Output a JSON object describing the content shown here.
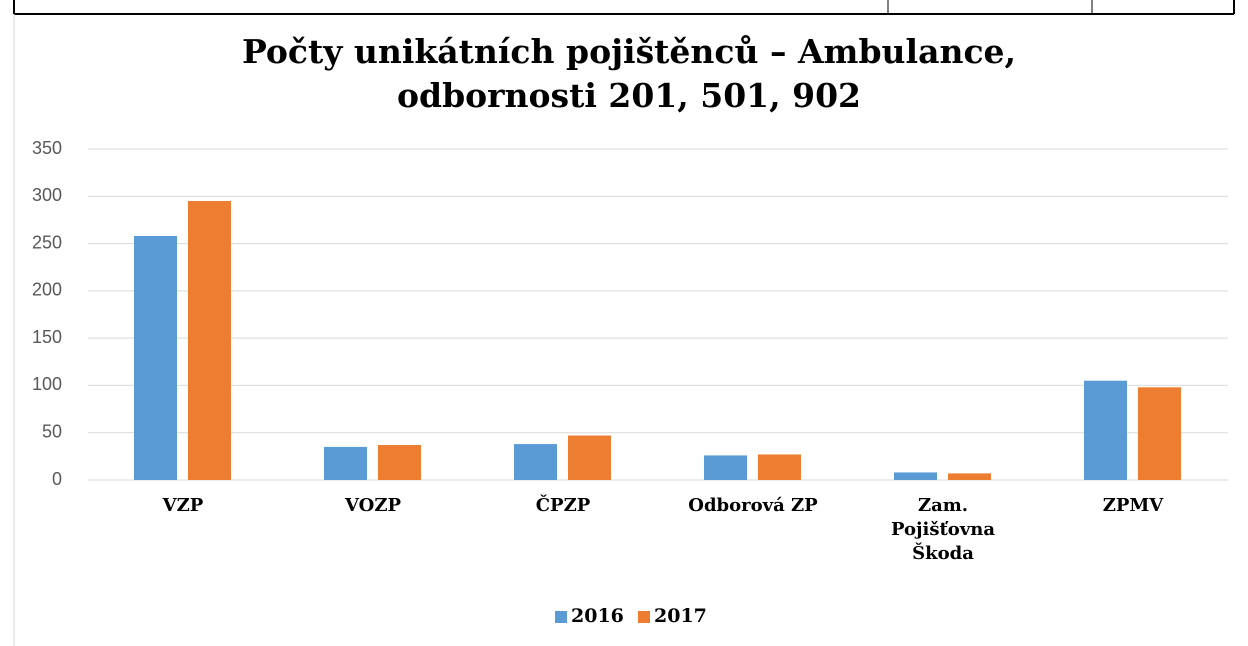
{
  "chart_data": {
    "type": "bar",
    "title": [
      "Počty unikátních pojištěnců – Ambulance,",
      "odbornosti 201, 501, 902"
    ],
    "categories": [
      "VZP",
      "VOZP",
      "ČPZP",
      "Odborová ZP",
      "Zam. Pojišťovna Škoda",
      "ZPMV"
    ],
    "series": [
      {
        "name": "2016",
        "color": "#5b9bd5",
        "values": [
          258,
          35,
          38,
          26,
          8,
          105
        ]
      },
      {
        "name": "2017",
        "color": "#ed7d31",
        "values": [
          295,
          37,
          47,
          27,
          7,
          98
        ]
      }
    ],
    "ylim": [
      0,
      350
    ],
    "yticks": [
      0,
      50,
      100,
      150,
      200,
      250,
      300,
      350
    ],
    "grid": true,
    "legend": "bottom"
  }
}
